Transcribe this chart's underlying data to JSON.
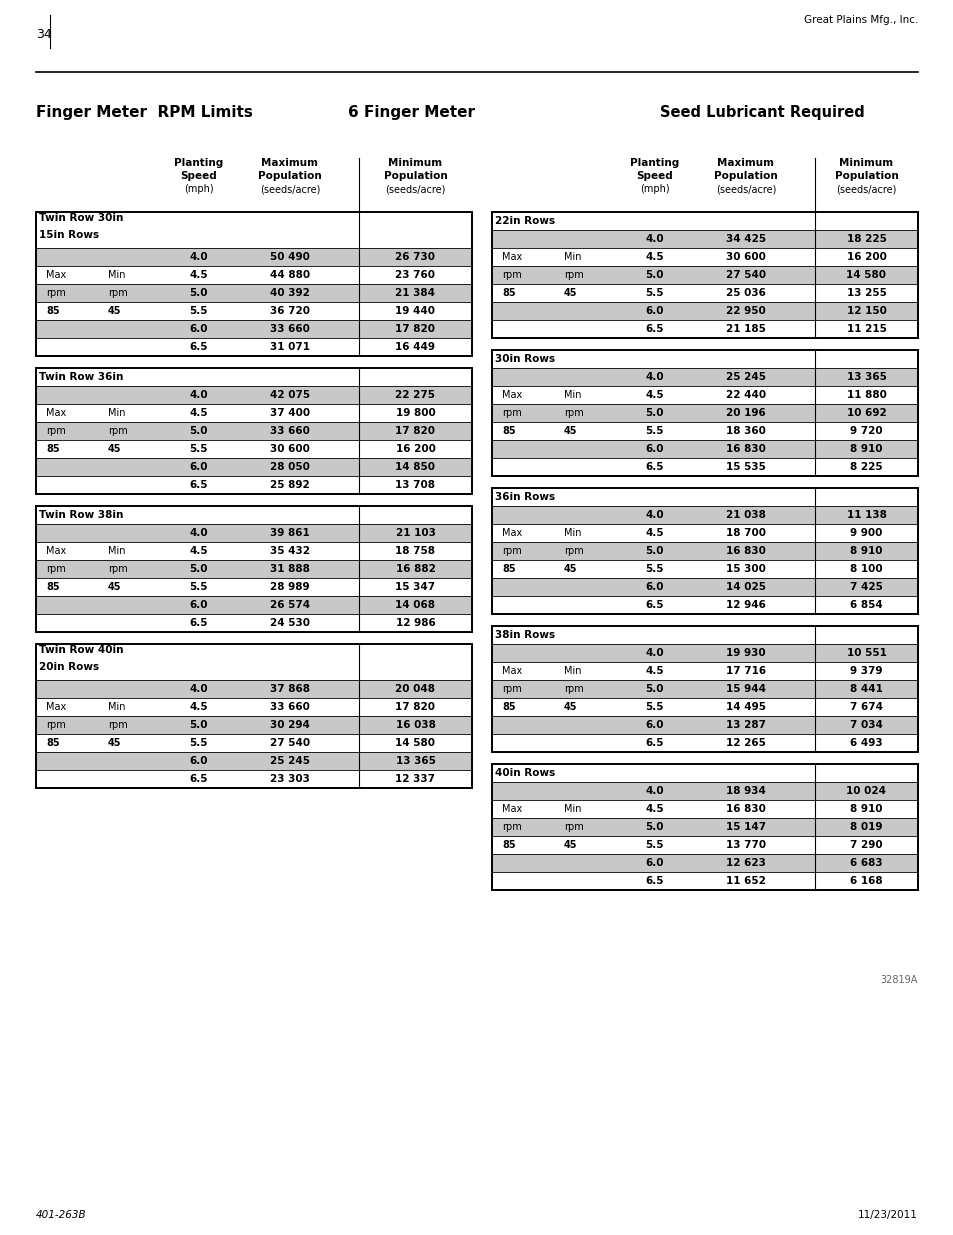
{
  "page_number": "34",
  "company": "Great Plains Mfg., Inc.",
  "title1": "Finger Meter  RPM Limits",
  "title2": "6 Finger Meter",
  "title3": "Seed Lubricant Required",
  "footer_left": "401-263B",
  "footer_right": "11/23/2011",
  "watermark": "32819A",
  "left_tables": [
    {
      "title_line1": "Twin Row 30in",
      "title_line2": "15in Rows",
      "rows": [
        [
          "4.0",
          "50 490",
          "26 730"
        ],
        [
          "4.5",
          "44 880",
          "23 760"
        ],
        [
          "5.0",
          "40 392",
          "21 384"
        ],
        [
          "5.5",
          "36 720",
          "19 440"
        ],
        [
          "6.0",
          "33 660",
          "17 820"
        ],
        [
          "6.5",
          "31 071",
          "16 449"
        ]
      ]
    },
    {
      "title_line1": "Twin Row 36in",
      "title_line2": "",
      "rows": [
        [
          "4.0",
          "42 075",
          "22 275"
        ],
        [
          "4.5",
          "37 400",
          "19 800"
        ],
        [
          "5.0",
          "33 660",
          "17 820"
        ],
        [
          "5.5",
          "30 600",
          "16 200"
        ],
        [
          "6.0",
          "28 050",
          "14 850"
        ],
        [
          "6.5",
          "25 892",
          "13 708"
        ]
      ]
    },
    {
      "title_line1": "Twin Row 38in",
      "title_line2": "",
      "rows": [
        [
          "4.0",
          "39 861",
          "21 103"
        ],
        [
          "4.5",
          "35 432",
          "18 758"
        ],
        [
          "5.0",
          "31 888",
          "16 882"
        ],
        [
          "5.5",
          "28 989",
          "15 347"
        ],
        [
          "6.0",
          "26 574",
          "14 068"
        ],
        [
          "6.5",
          "24 530",
          "12 986"
        ]
      ]
    },
    {
      "title_line1": "Twin Row 40in",
      "title_line2": "20in Rows",
      "rows": [
        [
          "4.0",
          "37 868",
          "20 048"
        ],
        [
          "4.5",
          "33 660",
          "17 820"
        ],
        [
          "5.0",
          "30 294",
          "16 038"
        ],
        [
          "5.5",
          "27 540",
          "14 580"
        ],
        [
          "6.0",
          "25 245",
          "13 365"
        ],
        [
          "6.5",
          "23 303",
          "12 337"
        ]
      ]
    }
  ],
  "right_tables": [
    {
      "title_line1": "22in Rows",
      "title_line2": "",
      "rows": [
        [
          "4.0",
          "34 425",
          "18 225"
        ],
        [
          "4.5",
          "30 600",
          "16 200"
        ],
        [
          "5.0",
          "27 540",
          "14 580"
        ],
        [
          "5.5",
          "25 036",
          "13 255"
        ],
        [
          "6.0",
          "22 950",
          "12 150"
        ],
        [
          "6.5",
          "21 185",
          "11 215"
        ]
      ]
    },
    {
      "title_line1": "30in Rows",
      "title_line2": "",
      "rows": [
        [
          "4.0",
          "25 245",
          "13 365"
        ],
        [
          "4.5",
          "22 440",
          "11 880"
        ],
        [
          "5.0",
          "20 196",
          "10 692"
        ],
        [
          "5.5",
          "18 360",
          "9 720"
        ],
        [
          "6.0",
          "16 830",
          "8 910"
        ],
        [
          "6.5",
          "15 535",
          "8 225"
        ]
      ]
    },
    {
      "title_line1": "36in Rows",
      "title_line2": "",
      "rows": [
        [
          "4.0",
          "21 038",
          "11 138"
        ],
        [
          "4.5",
          "18 700",
          "9 900"
        ],
        [
          "5.0",
          "16 830",
          "8 910"
        ],
        [
          "5.5",
          "15 300",
          "8 100"
        ],
        [
          "6.0",
          "14 025",
          "7 425"
        ],
        [
          "6.5",
          "12 946",
          "6 854"
        ]
      ]
    },
    {
      "title_line1": "38in Rows",
      "title_line2": "",
      "rows": [
        [
          "4.0",
          "19 930",
          "10 551"
        ],
        [
          "4.5",
          "17 716",
          "9 379"
        ],
        [
          "5.0",
          "15 944",
          "8 441"
        ],
        [
          "5.5",
          "14 495",
          "7 674"
        ],
        [
          "6.0",
          "13 287",
          "7 034"
        ],
        [
          "6.5",
          "12 265",
          "6 493"
        ]
      ]
    },
    {
      "title_line1": "40in Rows",
      "title_line2": "",
      "rows": [
        [
          "4.0",
          "18 934",
          "10 024"
        ],
        [
          "4.5",
          "16 830",
          "8 910"
        ],
        [
          "5.0",
          "15 147",
          "8 019"
        ],
        [
          "5.5",
          "13 770",
          "7 290"
        ],
        [
          "6.0",
          "12 623",
          "6 683"
        ],
        [
          "6.5",
          "11 652",
          "6 168"
        ]
      ]
    }
  ]
}
